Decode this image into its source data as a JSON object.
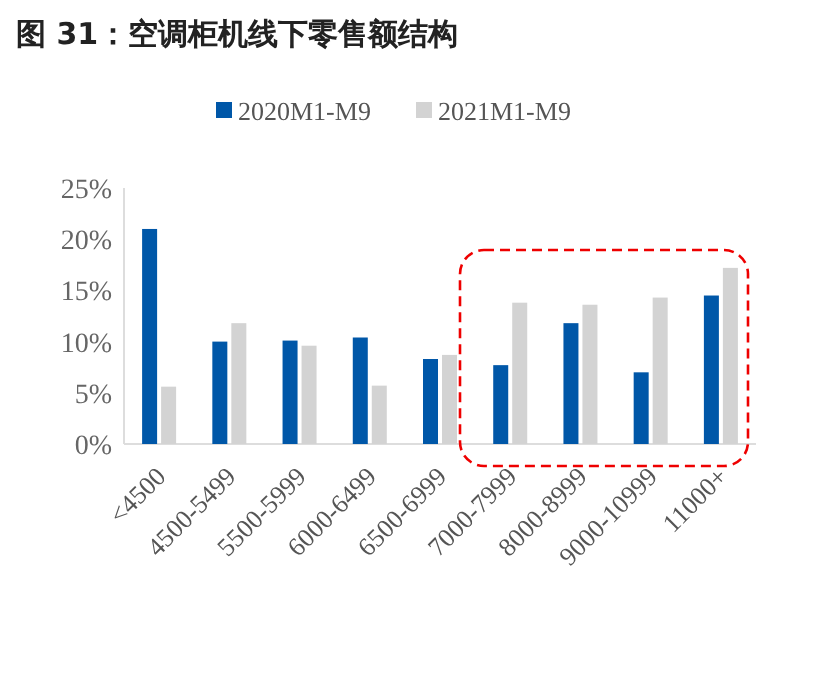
{
  "chart_data": {
    "type": "bar",
    "title": "图 31：空调柜机线下零售额结构",
    "categories": [
      "<4500",
      "4500-5499",
      "5500-5999",
      "6000-6499",
      "6500-6999",
      "7000-7999",
      "8000-8999",
      "9000-10999",
      "11000+"
    ],
    "series": [
      {
        "name": "2020M1-M9",
        "color": "#0057a8",
        "values": [
          21,
          10,
          10.1,
          10.4,
          8.3,
          7.7,
          11.8,
          7,
          14.5
        ]
      },
      {
        "name": "2021M1-M9",
        "color": "#d3d3d3",
        "values": [
          5.6,
          11.8,
          9.6,
          5.7,
          8.7,
          13.8,
          13.6,
          14.3,
          17.2
        ]
      }
    ],
    "ylim": [
      0,
      25
    ],
    "yticks": [
      {
        "value": 0,
        "label": "0%"
      },
      {
        "value": 5,
        "label": "5%"
      },
      {
        "value": 10,
        "label": "10%"
      },
      {
        "value": 15,
        "label": "15%"
      },
      {
        "value": 20,
        "label": "20%"
      },
      {
        "value": 25,
        "label": "25%"
      }
    ],
    "legend": "top",
    "grid": false
  }
}
